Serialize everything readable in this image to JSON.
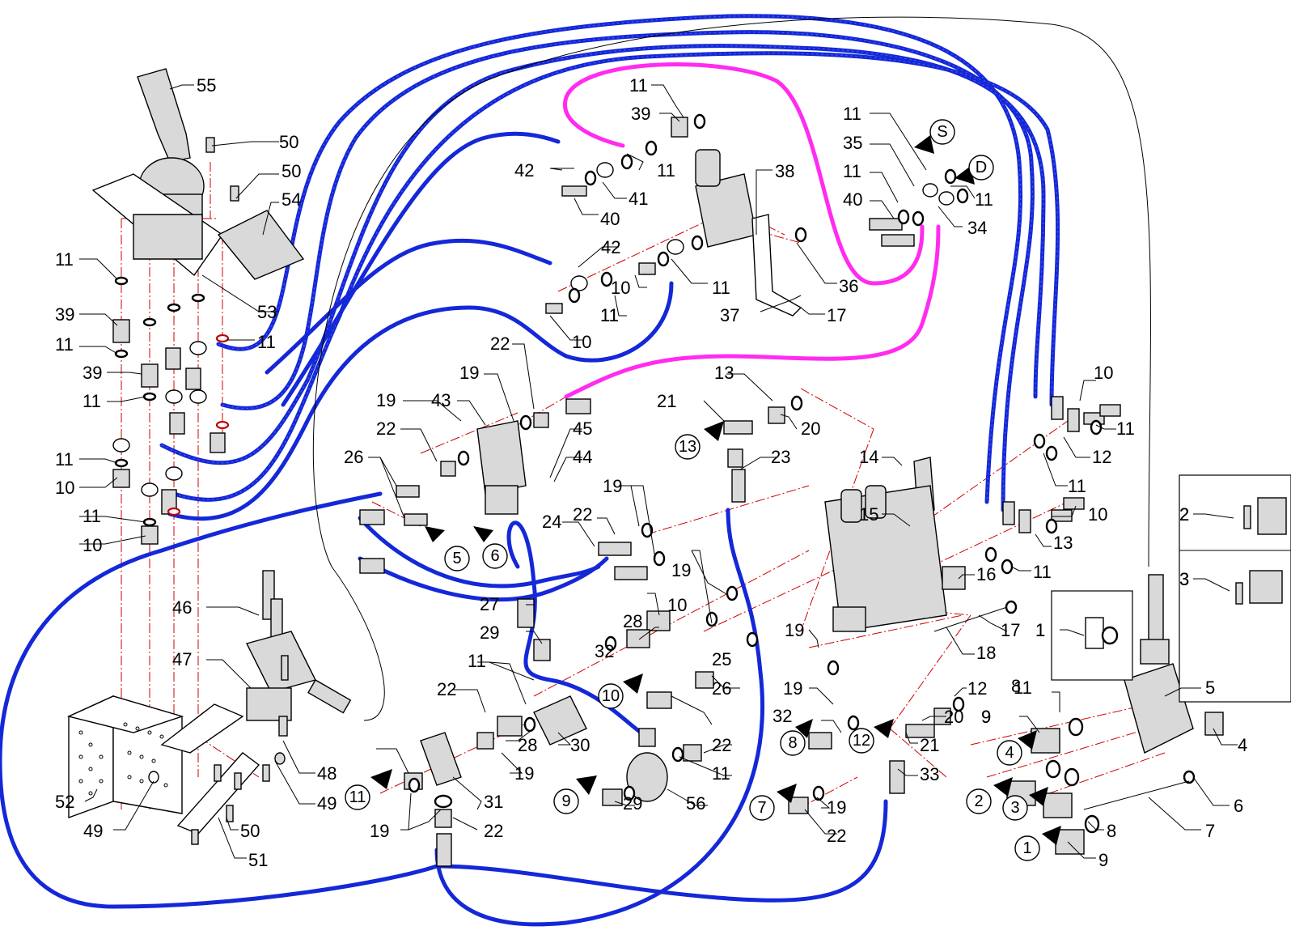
{
  "figure": {
    "labels": [
      "55",
      "50",
      "50",
      "54",
      "11",
      "39",
      "11",
      "39",
      "11",
      "11",
      "10",
      "11",
      "10",
      "53",
      "11",
      "42",
      "40",
      "41",
      "11",
      "39",
      "11",
      "11",
      "38",
      "42",
      "10",
      "11",
      "11",
      "10",
      "37",
      "17",
      "36",
      "11",
      "35",
      "11",
      "40",
      "11",
      "34",
      "22",
      "19",
      "43",
      "19",
      "22",
      "45",
      "44",
      "26",
      "24",
      "27",
      "29",
      "11",
      "22",
      "22",
      "19",
      "28",
      "30",
      "19",
      "31",
      "22",
      "19",
      "21",
      "20",
      "13",
      "23",
      "14",
      "15",
      "16",
      "17",
      "18",
      "19",
      "32",
      "19",
      "20",
      "21",
      "12",
      "33",
      "19",
      "22",
      "26",
      "10",
      "25",
      "28",
      "32",
      "19",
      "22",
      "11",
      "29",
      "56",
      "11",
      "9",
      "8",
      "5",
      "9",
      "4",
      "2",
      "3",
      "1",
      "6",
      "7",
      "8",
      "9",
      "10",
      "11",
      "12",
      "11",
      "10",
      "13",
      "11",
      "2",
      "3",
      "1",
      "46",
      "47",
      "48",
      "49",
      "50",
      "51",
      "49",
      "52"
    ],
    "circled_labels": [
      "11",
      "9",
      "13",
      "10",
      "8",
      "12",
      "7",
      "4",
      "2",
      "3",
      "1",
      "5",
      "6"
    ],
    "port_markers": [
      "S",
      "D"
    ],
    "colors": {
      "pressure_hose": "#1428d8",
      "drain_hose": "#ff2cf0",
      "centerline": "#d00000"
    }
  }
}
